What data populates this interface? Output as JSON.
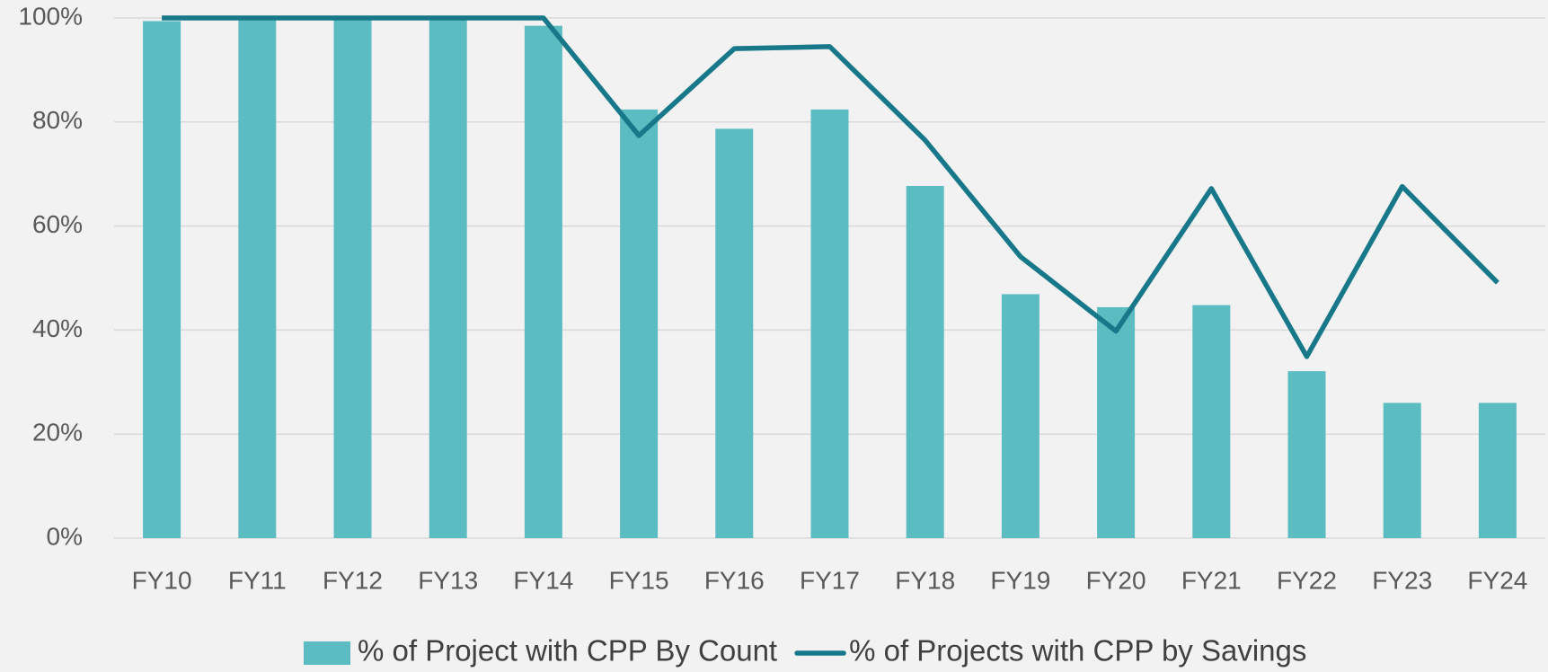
{
  "chart_data": {
    "type": "bar_line",
    "categories": [
      "FY10",
      "FY11",
      "FY12",
      "FY13",
      "FY14",
      "FY15",
      "FY16",
      "FY17",
      "FY18",
      "FY19",
      "FY20",
      "FY21",
      "FY22",
      "FY23",
      "FY24"
    ],
    "series": [
      {
        "name": "% of Project with CPP By Count",
        "type": "bar",
        "color": "#5bbcc2",
        "values": [
          99.4,
          100,
          100,
          100,
          98.5,
          82.4,
          78.7,
          82.4,
          67.7,
          46.9,
          44.4,
          44.8,
          32.1,
          26,
          26
        ]
      },
      {
        "name": "% of Projects with CPP by Savings",
        "type": "line",
        "color": "#17788a",
        "values": [
          100,
          100,
          100,
          100,
          100,
          77.4,
          94.1,
          94.5,
          76.5,
          54.1,
          39.8,
          67.2,
          34.9,
          67.6,
          49.1
        ]
      }
    ],
    "ylim": [
      0,
      100
    ],
    "yticks": [
      {
        "value": 0,
        "label": "0%"
      },
      {
        "value": 20,
        "label": "20%"
      },
      {
        "value": 40,
        "label": "40%"
      },
      {
        "value": 60,
        "label": "60%"
      },
      {
        "value": 80,
        "label": "80%"
      },
      {
        "value": 100,
        "label": "100%"
      }
    ],
    "grid": true,
    "legend": "bottom"
  }
}
